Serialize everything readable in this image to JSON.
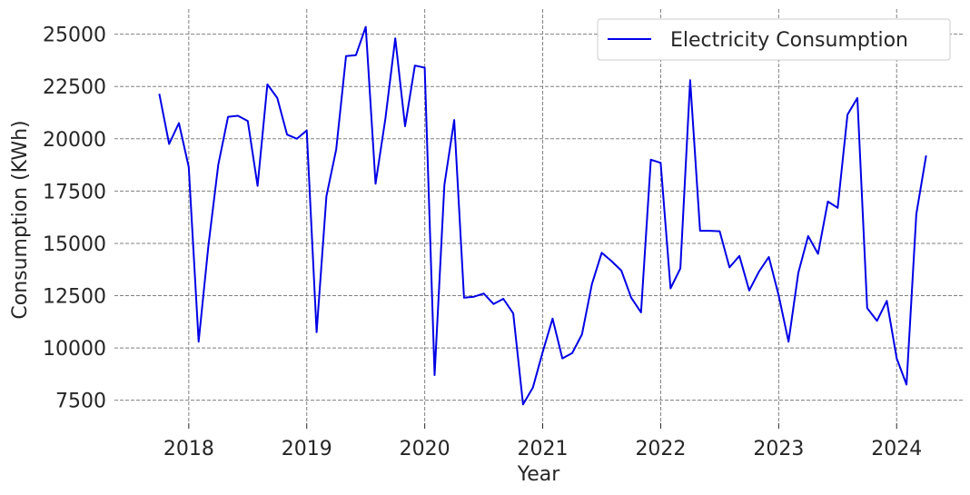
{
  "chart_data": {
    "type": "line",
    "title": "",
    "xlabel": "Year",
    "ylabel": "Consumption (KWh)",
    "xlim": [
      2017.37,
      2024.56
    ],
    "ylim": [
      6400,
      26200
    ],
    "x_ticks": [
      2018,
      2019,
      2020,
      2021,
      2022,
      2023,
      2024
    ],
    "x_tick_labels": [
      "2018",
      "2019",
      "2020",
      "2021",
      "2022",
      "2023",
      "2024"
    ],
    "y_ticks": [
      7500,
      10000,
      12500,
      15000,
      17500,
      20000,
      22500,
      25000
    ],
    "y_tick_labels": [
      "7500",
      "10000",
      "12500",
      "15000",
      "17500",
      "20000",
      "22500",
      "25000"
    ],
    "grid": true,
    "legend_position": "top-right",
    "colors": {
      "line": "#0000e6",
      "grid": "#808080",
      "text": "#262626"
    },
    "series": [
      {
        "name": "Electricity Consumption",
        "dates": [
          "2017-10",
          "2017-11",
          "2017-12",
          "2018-01",
          "2018-02",
          "2018-03",
          "2018-04",
          "2018-05",
          "2018-06",
          "2018-07",
          "2018-08",
          "2018-09",
          "2018-10",
          "2018-11",
          "2018-12",
          "2019-01",
          "2019-02",
          "2019-03",
          "2019-04",
          "2019-05",
          "2019-06",
          "2019-07",
          "2019-08",
          "2019-09",
          "2019-10",
          "2019-11",
          "2019-12",
          "2020-01",
          "2020-02",
          "2020-03",
          "2020-04",
          "2020-05",
          "2020-06",
          "2020-07",
          "2020-08",
          "2020-09",
          "2020-10",
          "2020-11",
          "2020-12",
          "2021-01",
          "2021-02",
          "2021-03",
          "2021-04",
          "2021-05",
          "2021-06",
          "2021-07",
          "2021-08",
          "2021-09",
          "2021-10",
          "2021-11",
          "2021-12",
          "2022-01",
          "2022-02",
          "2022-03",
          "2022-04",
          "2022-05",
          "2022-06",
          "2022-07",
          "2022-08",
          "2022-09",
          "2022-10",
          "2022-11",
          "2022-12",
          "2023-01",
          "2023-02",
          "2023-03",
          "2023-04",
          "2023-05",
          "2023-06",
          "2023-07",
          "2023-08",
          "2023-09",
          "2023-10",
          "2023-11",
          "2023-12",
          "2024-01",
          "2024-02",
          "2024-03",
          "2024-04"
        ],
        "values": [
          22150,
          19750,
          20750,
          18650,
          10300,
          14900,
          18750,
          21050,
          21100,
          20850,
          17750,
          22600,
          21950,
          20200,
          20000,
          20400,
          10750,
          17250,
          19500,
          23950,
          24000,
          25350,
          17850,
          20950,
          24800,
          20600,
          23500,
          23400,
          8700,
          17800,
          20900,
          12400,
          12450,
          12600,
          12100,
          12350,
          11650,
          7300,
          8100,
          9800,
          11400,
          9500,
          9750,
          10650,
          13050,
          14550,
          14150,
          13700,
          12400,
          11700,
          19000,
          18850,
          12850,
          13800,
          22800,
          15600,
          15600,
          15580,
          13850,
          14400,
          12750,
          13650,
          14350,
          12500,
          10300,
          13600,
          15350,
          14500,
          17000,
          16700,
          21150,
          21950,
          11900,
          11300,
          12250,
          9500,
          8250,
          16400,
          19200
        ]
      }
    ]
  }
}
